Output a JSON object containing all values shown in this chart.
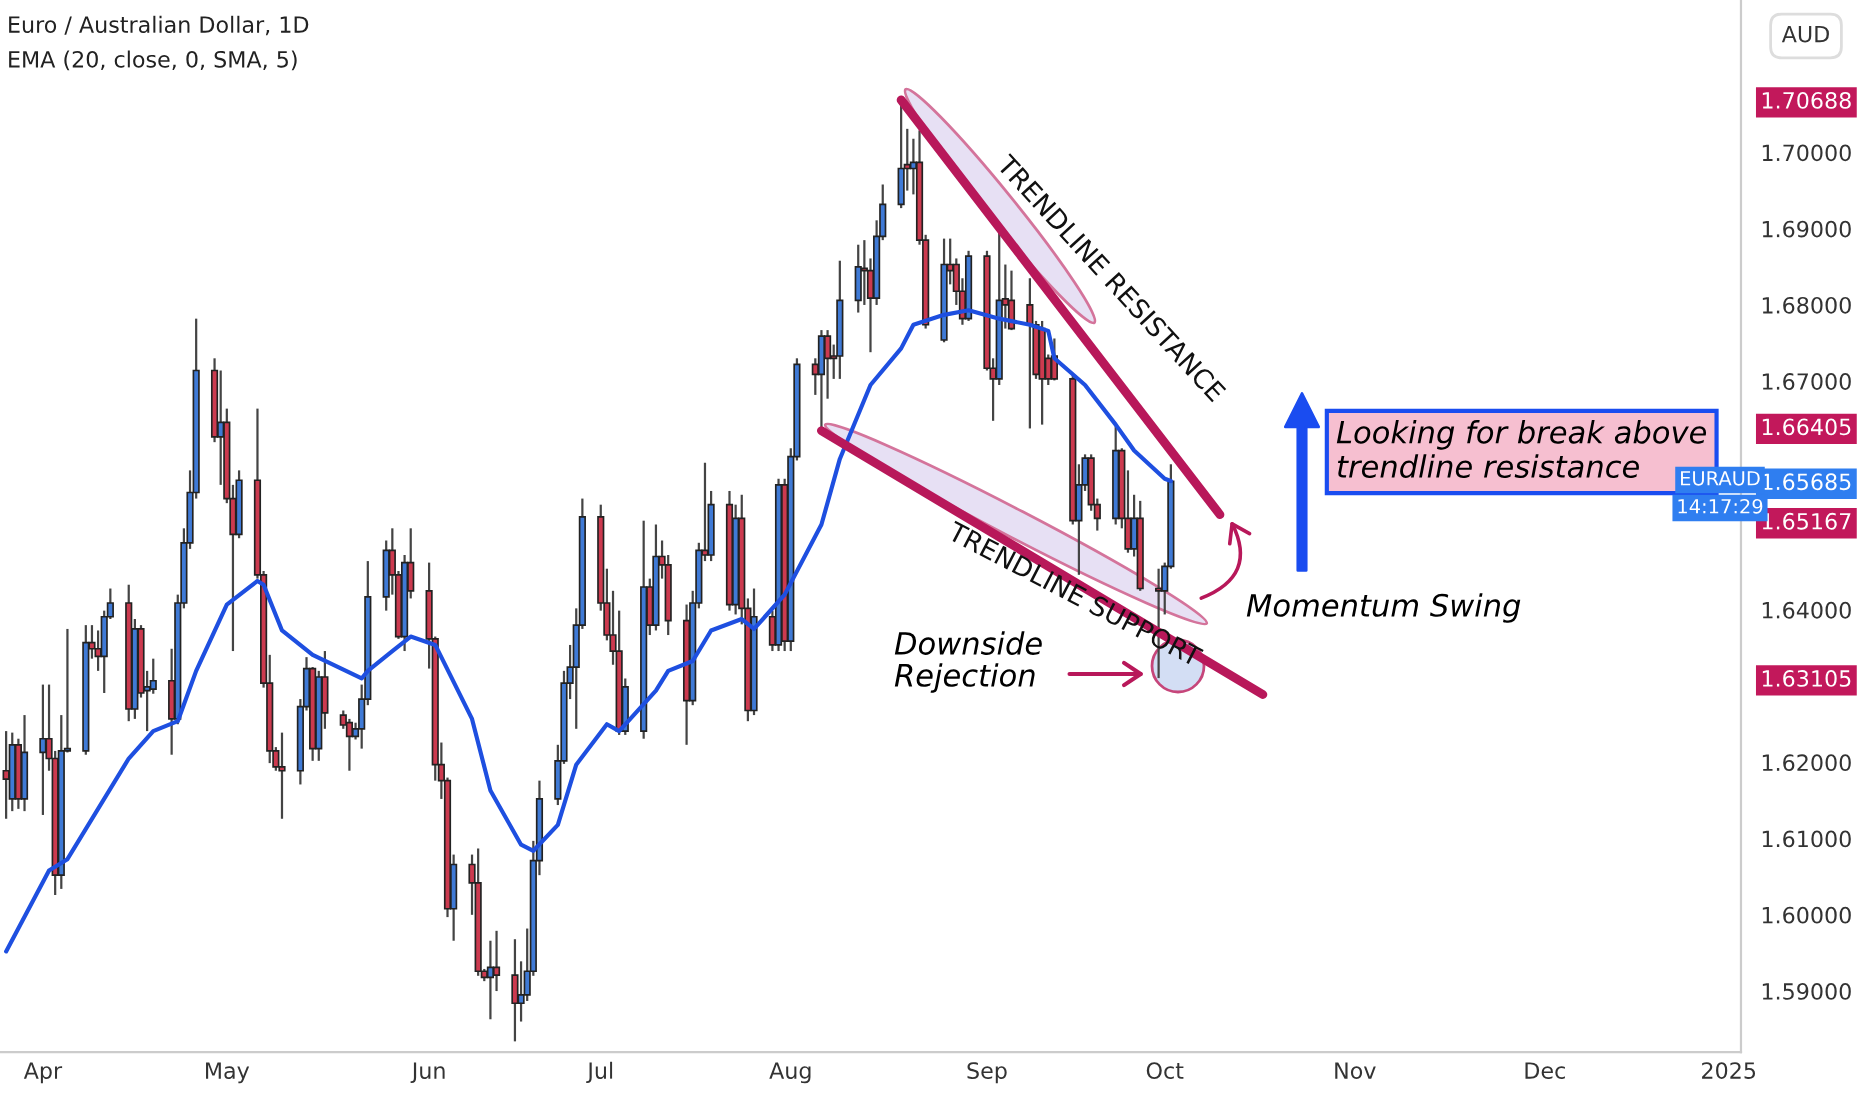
{
  "chart_data": {
    "type": "candlestick",
    "title": "Euro / Australian Dollar, 1D",
    "subtitle": "EMA (20, close, 0, SMA, 5)",
    "x": [
      "2024-03-26",
      "2024-03-27",
      "2024-03-28",
      "2024-03-29",
      "2024-04-01",
      "2024-04-02",
      "2024-04-03",
      "2024-04-04",
      "2024-04-05",
      "2024-04-08",
      "2024-04-09",
      "2024-04-10",
      "2024-04-11",
      "2024-04-12",
      "2024-04-15",
      "2024-04-16",
      "2024-04-17",
      "2024-04-18",
      "2024-04-19",
      "2024-04-22",
      "2024-04-23",
      "2024-04-24",
      "2024-04-25",
      "2024-04-26",
      "2024-04-29",
      "2024-04-30",
      "2024-05-01",
      "2024-05-02",
      "2024-05-03",
      "2024-05-06",
      "2024-05-07",
      "2024-05-08",
      "2024-05-09",
      "2024-05-10",
      "2024-05-13",
      "2024-05-14",
      "2024-05-15",
      "2024-05-16",
      "2024-05-17",
      "2024-05-20",
      "2024-05-21",
      "2024-05-22",
      "2024-05-23",
      "2024-05-24",
      "2024-05-27",
      "2024-05-28",
      "2024-05-29",
      "2024-05-30",
      "2024-05-31",
      "2024-06-03",
      "2024-06-04",
      "2024-06-05",
      "2024-06-06",
      "2024-06-07",
      "2024-06-10",
      "2024-06-11",
      "2024-06-12",
      "2024-06-13",
      "2024-06-14",
      "2024-06-17",
      "2024-06-18",
      "2024-06-19",
      "2024-06-20",
      "2024-06-21",
      "2024-06-24",
      "2024-06-25",
      "2024-06-26",
      "2024-06-27",
      "2024-06-28",
      "2024-07-01",
      "2024-07-02",
      "2024-07-03",
      "2024-07-04",
      "2024-07-05",
      "2024-07-08",
      "2024-07-09",
      "2024-07-10",
      "2024-07-11",
      "2024-07-12",
      "2024-07-15",
      "2024-07-16",
      "2024-07-17",
      "2024-07-18",
      "2024-07-19",
      "2024-07-22",
      "2024-07-23",
      "2024-07-24",
      "2024-07-25",
      "2024-07-26",
      "2024-07-29",
      "2024-07-30",
      "2024-07-31",
      "2024-08-01",
      "2024-08-02",
      "2024-08-05",
      "2024-08-06",
      "2024-08-07",
      "2024-08-08",
      "2024-08-09",
      "2024-08-12",
      "2024-08-13",
      "2024-08-14",
      "2024-08-15",
      "2024-08-16",
      "2024-08-19",
      "2024-08-20",
      "2024-08-21",
      "2024-08-22",
      "2024-08-23",
      "2024-08-26",
      "2024-08-27",
      "2024-08-28",
      "2024-08-29",
      "2024-08-30",
      "2024-09-02",
      "2024-09-03",
      "2024-09-04",
      "2024-09-05",
      "2024-09-06",
      "2024-09-09",
      "2024-09-10",
      "2024-09-11",
      "2024-09-12",
      "2024-09-13",
      "2024-09-16",
      "2024-09-17",
      "2024-09-18",
      "2024-09-19",
      "2024-09-20",
      "2024-09-23",
      "2024-09-24",
      "2024-09-25",
      "2024-09-26",
      "2024-09-27",
      "2024-09-30",
      "2024-10-01",
      "2024-10-02"
    ],
    "ohlc": [
      [
        1.6189,
        1.6241,
        1.6126,
        1.6178
      ],
      [
        1.6152,
        1.6239,
        1.6136,
        1.6223
      ],
      [
        1.6223,
        1.6231,
        1.6139,
        1.6152
      ],
      [
        1.6152,
        1.6262,
        1.6136,
        1.6213
      ],
      [
        1.6213,
        1.6302,
        1.6131,
        1.6231
      ],
      [
        1.6231,
        1.6302,
        1.6189,
        1.6205
      ],
      [
        1.6205,
        1.6215,
        1.6026,
        1.6052
      ],
      [
        1.6052,
        1.6262,
        1.6034,
        1.6215
      ],
      [
        1.6215,
        1.6375,
        1.6213,
        1.6218
      ],
      [
        1.6215,
        1.638,
        1.621,
        1.6357
      ],
      [
        1.6357,
        1.638,
        1.6336,
        1.6349
      ],
      [
        1.6349,
        1.6373,
        1.632,
        1.6339
      ],
      [
        1.6339,
        1.6399,
        1.6291,
        1.6391
      ],
      [
        1.6391,
        1.6428,
        1.6388,
        1.6409
      ],
      [
        1.6409,
        1.6433,
        1.6254,
        1.627
      ],
      [
        1.627,
        1.6388,
        1.6257,
        1.6375
      ],
      [
        1.6375,
        1.638,
        1.6285,
        1.6291
      ],
      [
        1.6294,
        1.632,
        1.6241,
        1.6299
      ],
      [
        1.6296,
        1.6336,
        1.629,
        1.6307
      ],
      [
        1.6307,
        1.6349,
        1.621,
        1.6257
      ],
      [
        1.6257,
        1.642,
        1.625,
        1.6409
      ],
      [
        1.6409,
        1.6507,
        1.6402,
        1.6488
      ],
      [
        1.6488,
        1.6583,
        1.648,
        1.6554
      ],
      [
        1.6554,
        1.6782,
        1.6546,
        1.6714
      ],
      [
        1.6714,
        1.673,
        1.662,
        1.6627
      ],
      [
        1.6627,
        1.6714,
        1.6564,
        1.6646
      ],
      [
        1.6646,
        1.6664,
        1.654,
        1.6546
      ],
      [
        1.6546,
        1.6564,
        1.6346,
        1.6499
      ],
      [
        1.6499,
        1.6583,
        1.6494,
        1.657
      ],
      [
        1.657,
        1.6664,
        1.6441,
        1.6446
      ],
      [
        1.6446,
        1.6451,
        1.6298,
        1.6304
      ],
      [
        1.6304,
        1.6341,
        1.6199,
        1.6215
      ],
      [
        1.6215,
        1.622,
        1.6189,
        1.6194
      ],
      [
        1.6194,
        1.6239,
        1.6126,
        1.6189
      ],
      [
        1.6189,
        1.6283,
        1.6171,
        1.6273
      ],
      [
        1.6273,
        1.6338,
        1.6268,
        1.6323
      ],
      [
        1.6323,
        1.6325,
        1.6202,
        1.6218
      ],
      [
        1.6218,
        1.632,
        1.6202,
        1.6312
      ],
      [
        1.6312,
        1.6346,
        1.6244,
        1.6265
      ],
      [
        1.6262,
        1.6268,
        1.6244,
        1.6249
      ],
      [
        1.6252,
        1.6257,
        1.6189,
        1.6234
      ],
      [
        1.6234,
        1.6252,
        1.623,
        1.6244
      ],
      [
        1.6244,
        1.6302,
        1.6218,
        1.6283
      ],
      [
        1.6283,
        1.6464,
        1.6275,
        1.6417
      ],
      [
        1.6417,
        1.6491,
        1.6399,
        1.6478
      ],
      [
        1.6478,
        1.6507,
        1.642,
        1.6446
      ],
      [
        1.6446,
        1.6451,
        1.6362,
        1.6365
      ],
      [
        1.6365,
        1.6472,
        1.6346,
        1.6462
      ],
      [
        1.6462,
        1.6507,
        1.6415,
        1.6425
      ],
      [
        1.6425,
        1.6462,
        1.6323,
        1.6362
      ],
      [
        1.6362,
        1.6365,
        1.6176,
        1.6197
      ],
      [
        1.6197,
        1.6226,
        1.6152,
        1.6176
      ],
      [
        1.6176,
        1.618,
        1.5997,
        1.6008
      ],
      [
        1.6008,
        1.6079,
        1.5966,
        1.6066
      ],
      [
        1.6066,
        1.6079,
        1.6,
        1.6042
      ],
      [
        1.6042,
        1.6087,
        1.592,
        1.5926
      ],
      [
        1.5926,
        1.5929,
        1.5913,
        1.5918
      ],
      [
        1.5918,
        1.5966,
        1.5863,
        1.5931
      ],
      [
        1.5931,
        1.5979,
        1.59,
        1.5921
      ],
      [
        1.5921,
        1.5968,
        1.5834,
        1.5884
      ],
      [
        1.5884,
        1.5939,
        1.586,
        1.5895
      ],
      [
        1.5895,
        1.5982,
        1.5887,
        1.5926
      ],
      [
        1.5926,
        1.6097,
        1.592,
        1.6071
      ],
      [
        1.6071,
        1.6176,
        1.6052,
        1.6152
      ],
      [
        1.6152,
        1.6223,
        1.6144,
        1.6202
      ],
      [
        1.6202,
        1.632,
        1.6198,
        1.6304
      ],
      [
        1.6304,
        1.6354,
        1.6283,
        1.6325
      ],
      [
        1.6325,
        1.6402,
        1.6244,
        1.638
      ],
      [
        1.638,
        1.6546,
        1.6375,
        1.6522
      ],
      [
        1.6522,
        1.6538,
        1.6399,
        1.6409
      ],
      [
        1.6409,
        1.6454,
        1.636,
        1.6367
      ],
      [
        1.6367,
        1.6425,
        1.6328,
        1.6346
      ],
      [
        1.6346,
        1.6399,
        1.6236,
        1.6241
      ],
      [
        1.6241,
        1.631,
        1.6236,
        1.6299
      ],
      [
        1.6241,
        1.6517,
        1.6231,
        1.643
      ],
      [
        1.643,
        1.6441,
        1.6367,
        1.638
      ],
      [
        1.638,
        1.6512,
        1.6373,
        1.647
      ],
      [
        1.647,
        1.6491,
        1.6441,
        1.6459
      ],
      [
        1.6459,
        1.6472,
        1.6367,
        1.6386
      ],
      [
        1.6386,
        1.6407,
        1.6223,
        1.6281
      ],
      [
        1.6281,
        1.6425,
        1.6275,
        1.6409
      ],
      [
        1.6409,
        1.6488,
        1.6402,
        1.6478
      ],
      [
        1.6478,
        1.6593,
        1.6464,
        1.6472
      ],
      [
        1.6472,
        1.6556,
        1.6464,
        1.6538
      ],
      [
        1.6538,
        1.6556,
        1.6399,
        1.6407
      ],
      [
        1.6407,
        1.6538,
        1.6394,
        1.652
      ],
      [
        1.652,
        1.6551,
        1.6381,
        1.6402
      ],
      [
        1.6402,
        1.6415,
        1.6254,
        1.6268
      ],
      [
        1.6268,
        1.6428,
        1.6262,
        1.6391
      ],
      [
        1.6391,
        1.6399,
        1.6346,
        1.6354
      ],
      [
        1.6354,
        1.6572,
        1.6346,
        1.6564
      ],
      [
        1.6564,
        1.6572,
        1.6346,
        1.6359
      ],
      [
        1.6359,
        1.6612,
        1.6346,
        1.6601
      ],
      [
        1.6601,
        1.673,
        1.6596,
        1.6722
      ],
      [
        1.6722,
        1.673,
        1.6682,
        1.6709
      ],
      [
        1.6709,
        1.6767,
        1.6635,
        1.6759
      ],
      [
        1.6759,
        1.6767,
        1.6677,
        1.673
      ],
      [
        1.6733,
        1.6748,
        1.6703,
        1.673
      ],
      [
        1.6733,
        1.6858,
        1.6703,
        1.6806
      ],
      [
        1.6806,
        1.6879,
        1.679,
        1.685
      ],
      [
        1.6848,
        1.6885,
        1.68,
        1.6845
      ],
      [
        1.6845,
        1.6861,
        1.6738,
        1.6809
      ],
      [
        1.6809,
        1.6911,
        1.68,
        1.689
      ],
      [
        1.689,
        1.6958,
        1.6885,
        1.6932
      ],
      [
        1.6932,
        1.70688,
        1.6927,
        1.6979
      ],
      [
        1.6984,
        1.7031,
        1.695,
        1.6979
      ],
      [
        1.6979,
        1.7018,
        1.6945,
        1.6987
      ],
      [
        1.6987,
        1.7029,
        1.6879,
        1.6885
      ],
      [
        1.6885,
        1.6892,
        1.6769,
        1.6774
      ],
      [
        1.6754,
        1.6887,
        1.6751,
        1.6853
      ],
      [
        1.6853,
        1.6887,
        1.6827,
        1.6845
      ],
      [
        1.6853,
        1.6861,
        1.68,
        1.6818
      ],
      [
        1.6818,
        1.6835,
        1.6774,
        1.6782
      ],
      [
        1.6782,
        1.6871,
        1.6779,
        1.6864
      ],
      [
        1.6864,
        1.6871,
        1.6714,
        1.6717
      ],
      [
        1.6717,
        1.673,
        1.6648,
        1.6703
      ],
      [
        1.6703,
        1.6897,
        1.6695,
        1.6806
      ],
      [
        1.6808,
        1.6853,
        1.6769,
        1.68
      ],
      [
        1.6806,
        1.6845,
        1.6767,
        1.6769
      ],
      [
        1.68,
        1.6835,
        1.6638,
        1.6774
      ],
      [
        1.6774,
        1.6779,
        1.6703,
        1.6709
      ],
      [
        1.6769,
        1.6779,
        1.6643,
        1.6703
      ],
      [
        1.673,
        1.6735,
        1.6695,
        1.6703
      ],
      [
        1.6733,
        1.6756,
        1.6701,
        1.6703
      ],
      [
        1.6703,
        1.6709,
        1.6512,
        1.6517
      ],
      [
        1.6517,
        1.6591,
        1.6446,
        1.6564
      ],
      [
        1.6564,
        1.6604,
        1.6556,
        1.6599
      ],
      [
        1.6599,
        1.6604,
        1.653,
        1.6538
      ],
      [
        1.6538,
        1.6546,
        1.6504,
        1.652
      ],
      [
        1.652,
        1.6643,
        1.6512,
        1.6609
      ],
      [
        1.6609,
        1.6612,
        1.6507,
        1.652
      ],
      [
        1.652,
        1.6583,
        1.6475,
        1.648
      ],
      [
        1.648,
        1.6551,
        1.647,
        1.652
      ],
      [
        1.652,
        1.6543,
        1.6425,
        1.6428
      ],
      [
        1.6428,
        1.6454,
        1.63105,
        1.6425
      ],
      [
        1.6425,
        1.6462,
        1.6394,
        1.6457
      ],
      [
        1.6457,
        1.6591,
        1.6454,
        1.65685
      ]
    ],
    "colors": [
      "#cc3a4f",
      "#3f7ad6",
      "#cc3a4f",
      "#3f7ad6",
      "#3f7ad6",
      "#cc3a4f",
      "#cc3a4f",
      "#3f7ad6",
      "#3f7ad6",
      "#3f7ad6",
      "#cc3a4f",
      "#cc3a4f",
      "#3f7ad6",
      "#3f7ad6",
      "#cc3a4f",
      "#3f7ad6",
      "#cc3a4f",
      "#3f7ad6",
      "#3f7ad6",
      "#cc3a4f",
      "#3f7ad6",
      "#3f7ad6",
      "#3f7ad6",
      "#3f7ad6",
      "#cc3a4f",
      "#3f7ad6",
      "#cc3a4f",
      "#cc3a4f",
      "#3f7ad6",
      "#cc3a4f",
      "#cc3a4f",
      "#cc3a4f",
      "#cc3a4f",
      "#cc3a4f",
      "#3f7ad6",
      "#3f7ad6",
      "#cc3a4f",
      "#3f7ad6",
      "#cc3a4f",
      "#cc3a4f",
      "#cc3a4f",
      "#3f7ad6",
      "#3f7ad6",
      "#3f7ad6",
      "#3f7ad6",
      "#cc3a4f",
      "#cc3a4f",
      "#3f7ad6",
      "#cc3a4f",
      "#cc3a4f",
      "#cc3a4f",
      "#cc3a4f",
      "#cc3a4f",
      "#3f7ad6",
      "#cc3a4f",
      "#cc3a4f",
      "#cc3a4f",
      "#3f7ad6",
      "#cc3a4f",
      "#cc3a4f",
      "#3f7ad6",
      "#3f7ad6",
      "#3f7ad6",
      "#3f7ad6",
      "#3f7ad6",
      "#3f7ad6",
      "#3f7ad6",
      "#3f7ad6",
      "#3f7ad6",
      "#cc3a4f",
      "#cc3a4f",
      "#cc3a4f",
      "#cc3a4f",
      "#3f7ad6",
      "#3f7ad6",
      "#cc3a4f",
      "#3f7ad6",
      "#cc3a4f",
      "#cc3a4f",
      "#cc3a4f",
      "#3f7ad6",
      "#3f7ad6",
      "#cc3a4f",
      "#3f7ad6",
      "#cc3a4f",
      "#3f7ad6",
      "#cc3a4f",
      "#cc3a4f",
      "#3f7ad6",
      "#cc3a4f",
      "#3f7ad6",
      "#cc3a4f",
      "#3f7ad6",
      "#3f7ad6",
      "#cc3a4f",
      "#3f7ad6",
      "#cc3a4f",
      "#cc3a4f",
      "#3f7ad6",
      "#3f7ad6",
      "#cc3a4f",
      "#cc3a4f",
      "#3f7ad6",
      "#3f7ad6",
      "#3f7ad6",
      "#cc3a4f",
      "#3f7ad6",
      "#cc3a4f",
      "#cc3a4f",
      "#3f7ad6",
      "#cc3a4f",
      "#cc3a4f",
      "#cc3a4f",
      "#3f7ad6",
      "#cc3a4f",
      "#cc3a4f",
      "#3f7ad6",
      "#cc3a4f",
      "#cc3a4f",
      "#cc3a4f",
      "#cc3a4f",
      "#cc3a4f",
      "#cc3a4f",
      "#cc3a4f",
      "#cc3a4f",
      "#3f7ad6",
      "#3f7ad6",
      "#cc3a4f",
      "#cc3a4f",
      "#3f7ad6",
      "#cc3a4f",
      "#cc3a4f",
      "#3f7ad6",
      "#cc3a4f",
      "#cc3a4f",
      "#3f7ad6",
      "#3f7ad6"
    ],
    "series": [
      {
        "type": "line",
        "color": "#1e4fe0",
        "x": [
          "2024-03-26",
          "2024-04-02",
          "2024-04-05",
          "2024-04-15",
          "2024-04-19",
          "2024-04-23",
          "2024-04-26",
          "2024-05-01",
          "2024-05-06",
          "2024-05-07",
          "2024-05-10",
          "2024-05-15",
          "2024-05-23",
          "2024-05-24",
          "2024-05-28",
          "2024-05-31",
          "2024-06-04",
          "2024-06-10",
          "2024-06-13",
          "2024-06-18",
          "2024-06-20",
          "2024-06-24",
          "2024-06-27",
          "2024-07-02",
          "2024-07-04",
          "2024-07-10",
          "2024-07-12",
          "2024-07-16",
          "2024-07-19",
          "2024-07-24",
          "2024-07-26",
          "2024-07-31",
          "2024-08-06",
          "2024-08-09",
          "2024-08-14",
          "2024-08-19",
          "2024-08-21",
          "2024-08-26",
          "2024-08-30",
          "2024-09-04",
          "2024-09-09",
          "2024-09-12",
          "2024-09-13",
          "2024-09-18",
          "2024-09-23",
          "2024-09-26",
          "2024-10-01",
          "2024-10-02"
        ],
        "values": [
          1.5952,
          1.6058,
          1.6073,
          1.6205,
          1.6241,
          1.6254,
          1.632,
          1.6407,
          1.6438,
          1.6433,
          1.6373,
          1.6341,
          1.631,
          1.632,
          1.6346,
          1.6365,
          1.6354,
          1.6257,
          1.6163,
          1.6092,
          1.6084,
          1.6118,
          1.6197,
          1.625,
          1.6241,
          1.6294,
          1.632,
          1.6333,
          1.6373,
          1.6388,
          1.6375,
          1.642,
          1.6512,
          1.6598,
          1.6695,
          1.6743,
          1.6774,
          1.6787,
          1.6793,
          1.6782,
          1.6774,
          1.6766,
          1.673,
          1.6695,
          1.6643,
          1.6609,
          1.6572,
          1.6569
        ]
      },
      {
        "type": "line",
        "name": "TRENDLINE RESISTANCE",
        "color": "#b8185a",
        "x": [
          "2024-08-19",
          "2024-10-10"
        ],
        "values": [
          1.70688,
          1.6525
        ]
      },
      {
        "type": "line",
        "name": "TRENDLINE SUPPORT",
        "color": "#b8185a",
        "x": [
          "2024-08-06",
          "2024-10-17"
        ],
        "values": [
          1.6635,
          1.6289
        ]
      }
    ],
    "xlim": [
      "2024-03-25",
      "2025-01-03"
    ],
    "xticks": [
      {
        "value": "2024-04-01",
        "label": "Apr"
      },
      {
        "value": "2024-05-01",
        "label": "May"
      },
      {
        "value": "2024-06-03",
        "label": "Jun"
      },
      {
        "value": "2024-07-01",
        "label": "Jul"
      },
      {
        "value": "2024-08-01",
        "label": "Aug"
      },
      {
        "value": "2024-09-02",
        "label": "Sep"
      },
      {
        "value": "2024-10-01",
        "label": "Oct"
      },
      {
        "value": "2024-11-01",
        "label": "Nov"
      },
      {
        "value": "2024-12-02",
        "label": "Dec"
      },
      {
        "value": "2025-01-01",
        "label": "2025"
      }
    ],
    "ylim": [
      1.582,
      1.72
    ],
    "yticks": [
      {
        "value": 1.59,
        "label": "1.59000"
      },
      {
        "value": 1.6,
        "label": "1.60000"
      },
      {
        "value": 1.61,
        "label": "1.61000"
      },
      {
        "value": 1.62,
        "label": "1.62000"
      },
      {
        "value": 1.64,
        "label": "1.64000"
      },
      {
        "value": 1.67,
        "label": "1.67000"
      },
      {
        "value": 1.68,
        "label": "1.68000"
      },
      {
        "value": 1.69,
        "label": "1.69000"
      },
      {
        "value": 1.7,
        "label": "1.70000"
      },
      1.70688,
      1.66405,
      1.65685,
      1.65167,
      1.63105
    ],
    "grid": false,
    "legend": false,
    "annotations": [
      "Looking for break above\ntrendline resistance",
      "Momentum Swing",
      "Downside\nRejection",
      "EURAUD",
      "14:17:29",
      "AUD"
    ]
  }
}
